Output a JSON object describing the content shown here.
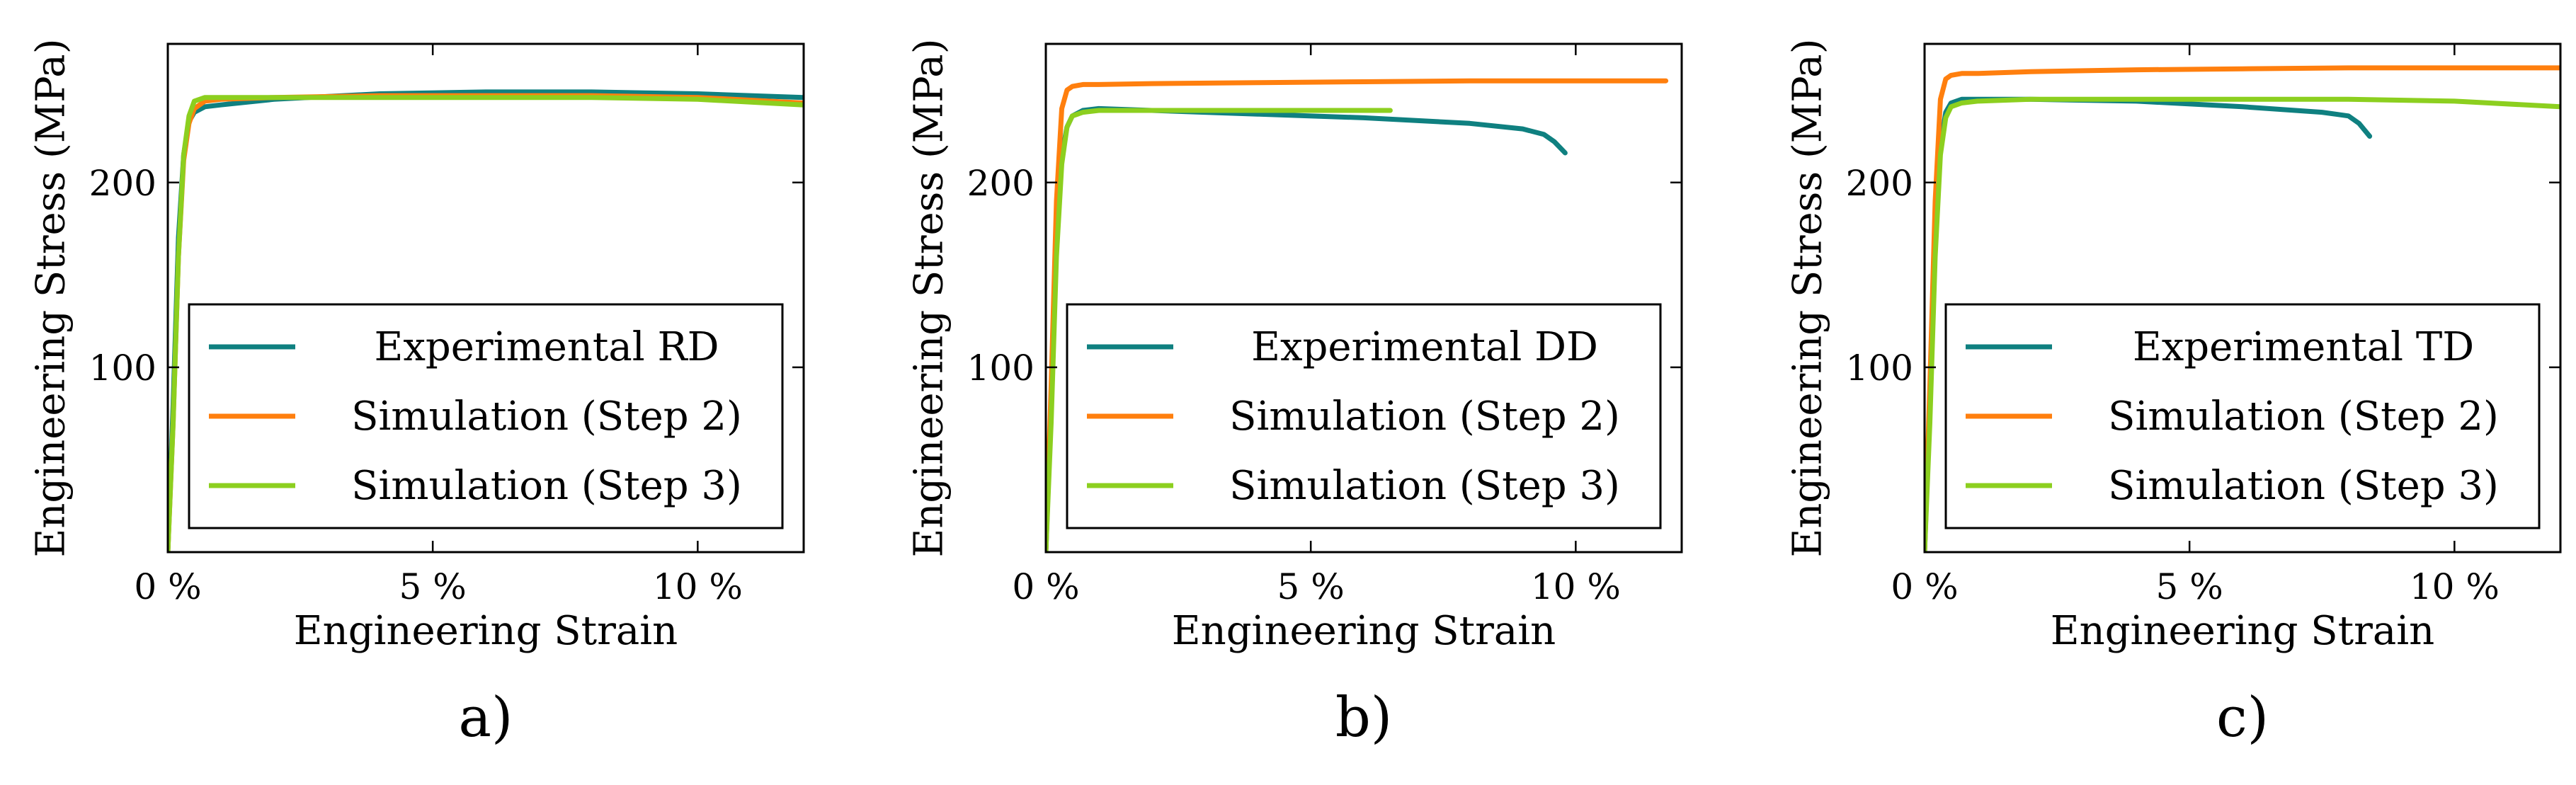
{
  "colors": {
    "experimental": "#0f8080",
    "step2": "#ff7f0e",
    "step3": "#8ccf1f"
  },
  "chart_data": [
    {
      "type": "line",
      "panel_label": "a)",
      "xlabel": "Engineering Strain",
      "ylabel": "Engineering Stress (MPa)",
      "xlim": [
        0,
        12
      ],
      "ylim": [
        0,
        275
      ],
      "xticks": [
        0,
        5,
        10
      ],
      "xtick_labels": [
        "0 %",
        "5 %",
        "10 %"
      ],
      "yticks": [
        100,
        200
      ],
      "ytick_labels": [
        "100",
        "200"
      ],
      "legend_position": "bottom-right",
      "series": [
        {
          "name": "Experimental RD",
          "color_key": "experimental",
          "x": [
            0,
            0.1,
            0.2,
            0.3,
            0.4,
            0.5,
            0.7,
            1,
            2,
            4,
            6,
            8,
            10,
            12
          ],
          "y": [
            0,
            80,
            170,
            215,
            233,
            238,
            241,
            242,
            245,
            248,
            249,
            249,
            248,
            246
          ]
        },
        {
          "name": "Simulation (Step 2)",
          "color_key": "step2",
          "x": [
            0,
            0.1,
            0.2,
            0.3,
            0.4,
            0.5,
            0.7,
            1,
            2,
            4,
            6,
            8,
            10,
            12
          ],
          "y": [
            0,
            70,
            160,
            212,
            232,
            240,
            244,
            245,
            246,
            247,
            247,
            247,
            246,
            243
          ]
        },
        {
          "name": "Simulation (Step 3)",
          "color_key": "step3",
          "x": [
            0,
            0.1,
            0.2,
            0.3,
            0.4,
            0.5,
            0.7,
            1,
            2,
            4,
            6,
            8,
            10,
            12
          ],
          "y": [
            0,
            70,
            160,
            215,
            236,
            244,
            246,
            246,
            246,
            246,
            246,
            246,
            245,
            242
          ]
        }
      ]
    },
    {
      "type": "line",
      "panel_label": "b)",
      "xlabel": "Engineering Strain",
      "ylabel": "Engineering Stress (MPa)",
      "xlim": [
        0,
        12
      ],
      "ylim": [
        0,
        275
      ],
      "xticks": [
        0,
        5,
        10
      ],
      "xtick_labels": [
        "0 %",
        "5 %",
        "10 %"
      ],
      "yticks": [
        100,
        200
      ],
      "ytick_labels": [
        "100",
        "200"
      ],
      "legend_position": "bottom-right",
      "series": [
        {
          "name": "Experimental DD",
          "color_key": "experimental",
          "x": [
            0,
            0.1,
            0.2,
            0.3,
            0.4,
            0.5,
            0.7,
            1,
            2,
            4,
            6,
            8,
            9,
            9.4,
            9.6,
            9.8
          ],
          "y": [
            0,
            80,
            170,
            215,
            230,
            236,
            239,
            240,
            239,
            237,
            235,
            232,
            229,
            226,
            222,
            216
          ]
        },
        {
          "name": "Simulation (Step 2)",
          "color_key": "step2",
          "x": [
            0,
            0.1,
            0.2,
            0.3,
            0.4,
            0.5,
            0.7,
            1,
            2,
            4,
            6,
            8,
            10,
            11.7
          ],
          "y": [
            0,
            90,
            190,
            240,
            250,
            252,
            253,
            253,
            253.5,
            254,
            254.5,
            255,
            255,
            255
          ]
        },
        {
          "name": "Simulation (Step 3)",
          "color_key": "step3",
          "x": [
            0,
            0.1,
            0.2,
            0.3,
            0.4,
            0.5,
            0.7,
            1,
            2,
            4,
            6.5
          ],
          "y": [
            0,
            70,
            160,
            210,
            230,
            236,
            238,
            239,
            239,
            239,
            239
          ]
        }
      ]
    },
    {
      "type": "line",
      "panel_label": "c)",
      "xlabel": "Engineering Strain",
      "ylabel": "Engineering Stress (MPa)",
      "xlim": [
        0,
        12
      ],
      "ylim": [
        0,
        275
      ],
      "xticks": [
        0,
        5,
        10
      ],
      "xtick_labels": [
        "0 %",
        "5 %",
        "10 %"
      ],
      "yticks": [
        100,
        200
      ],
      "ytick_labels": [
        "100",
        "200"
      ],
      "legend_position": "bottom-right",
      "series": [
        {
          "name": "Experimental TD",
          "color_key": "experimental",
          "x": [
            0,
            0.1,
            0.2,
            0.3,
            0.4,
            0.5,
            0.7,
            1,
            2,
            4,
            6,
            7.5,
            8,
            8.2,
            8.4
          ],
          "y": [
            0,
            80,
            170,
            220,
            238,
            243,
            245,
            245,
            245,
            244,
            241,
            238,
            236,
            232,
            225
          ]
        },
        {
          "name": "Simulation (Step 2)",
          "color_key": "step2",
          "x": [
            0,
            0.1,
            0.2,
            0.3,
            0.4,
            0.5,
            0.7,
            1,
            2,
            4,
            6,
            8,
            10,
            12
          ],
          "y": [
            0,
            90,
            190,
            245,
            256,
            258,
            259,
            259,
            260,
            261,
            261.5,
            262,
            262,
            262
          ]
        },
        {
          "name": "Simulation (Step 3)",
          "color_key": "step3",
          "x": [
            0,
            0.1,
            0.2,
            0.3,
            0.4,
            0.5,
            0.7,
            1,
            2,
            4,
            6,
            8,
            10,
            12
          ],
          "y": [
            0,
            70,
            160,
            215,
            235,
            241,
            243,
            244,
            245,
            245,
            245,
            245,
            244,
            241
          ]
        }
      ]
    }
  ]
}
